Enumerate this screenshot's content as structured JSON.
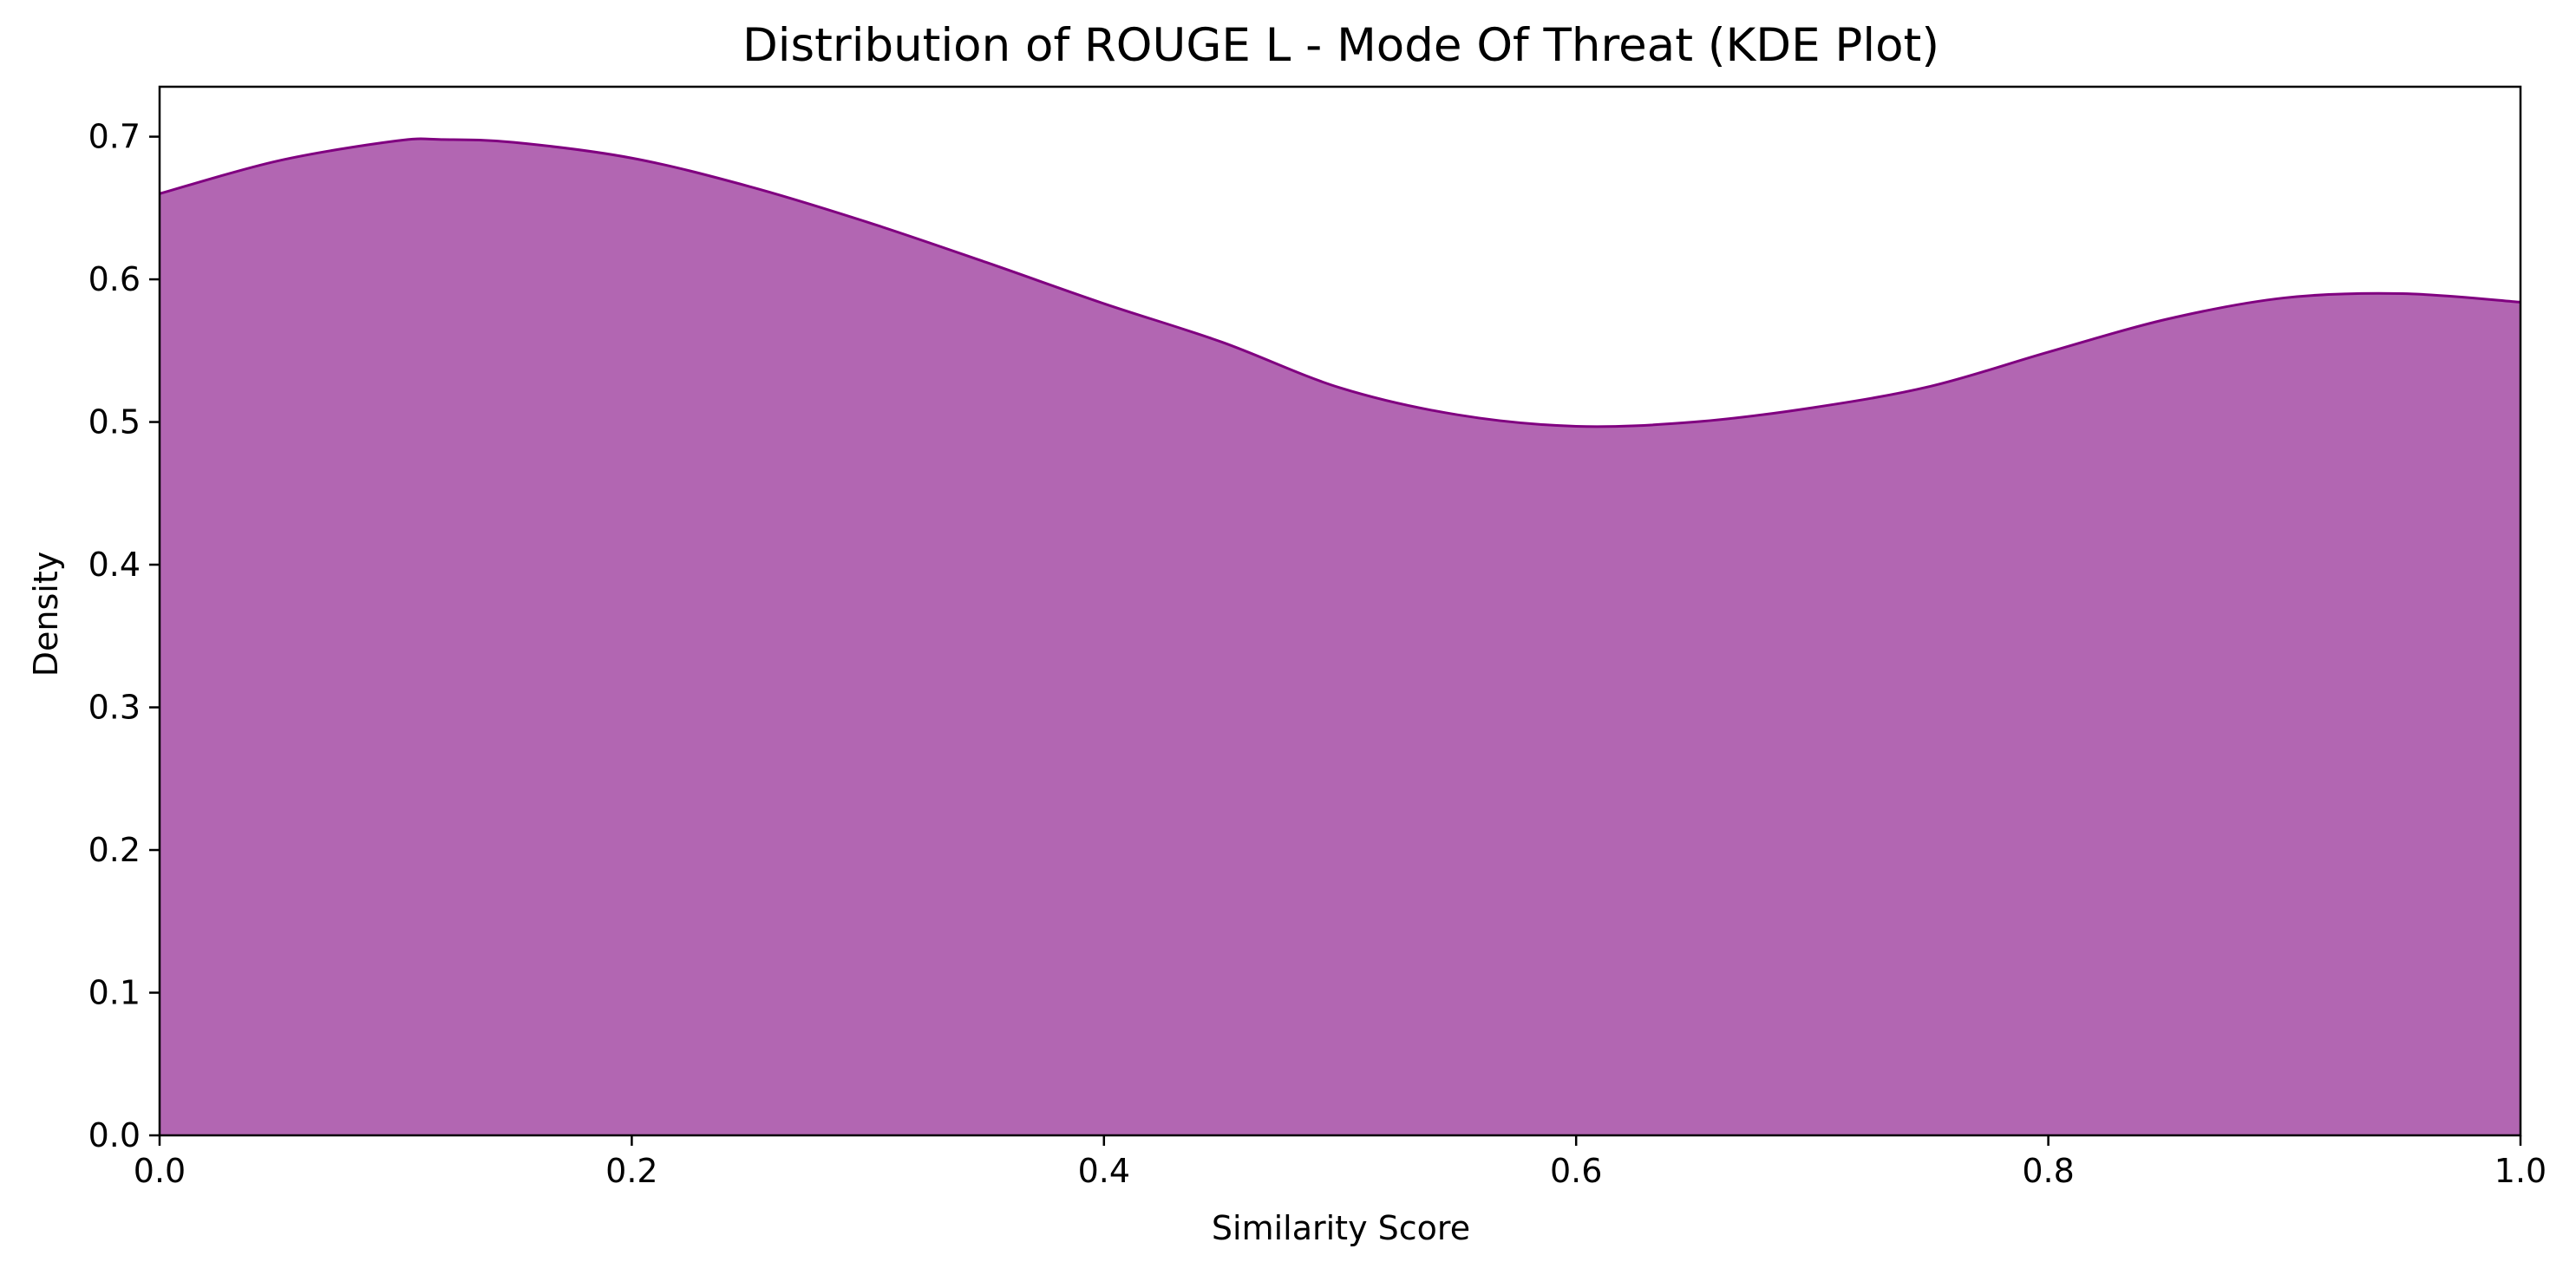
{
  "chart_data": {
    "type": "area",
    "title": "Distribution of ROUGE L - Mode Of Threat (KDE Plot)",
    "xlabel": "Similarity Score",
    "ylabel": "Density",
    "xlim": [
      0.0,
      1.0
    ],
    "ylim": [
      0.0,
      0.735
    ],
    "xticks": [
      0.0,
      0.2,
      0.4,
      0.6,
      0.8,
      1.0
    ],
    "xtick_labels": [
      "0.0",
      "0.2",
      "0.4",
      "0.6",
      "0.8",
      "1.0"
    ],
    "yticks": [
      0.0,
      0.1,
      0.2,
      0.3,
      0.4,
      0.5,
      0.6,
      0.7
    ],
    "ytick_labels": [
      "0.0",
      "0.1",
      "0.2",
      "0.3",
      "0.4",
      "0.5",
      "0.6",
      "0.7"
    ],
    "grid": false,
    "fill_color": "#b266b2",
    "line_color": "#800080",
    "series": [
      {
        "x": [
          0.0,
          0.05,
          0.1,
          0.12,
          0.15,
          0.2,
          0.25,
          0.3,
          0.35,
          0.4,
          0.45,
          0.5,
          0.55,
          0.6,
          0.65,
          0.7,
          0.75,
          0.8,
          0.85,
          0.9,
          0.95,
          1.0
        ],
        "y": [
          0.66,
          0.683,
          0.697,
          0.698,
          0.696,
          0.685,
          0.665,
          0.64,
          0.612,
          0.583,
          0.556,
          0.524,
          0.505,
          0.497,
          0.5,
          0.51,
          0.525,
          0.549,
          0.572,
          0.587,
          0.59,
          0.584
        ]
      }
    ]
  }
}
